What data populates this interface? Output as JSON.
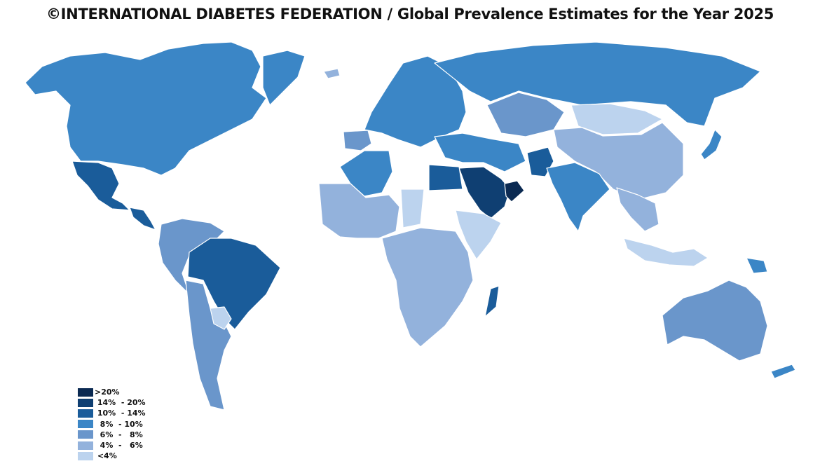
{
  "title": "©INTERNATIONAL DIABETES FEDERATION / Global Prevalence Estimates for the Year 2025",
  "legend": [
    {
      "label": ">20%",
      "color": "#0b2a52"
    },
    {
      "label": " 14%  - 20%",
      "color": "#0f3f72"
    },
    {
      "label": " 10%  - 14%",
      "color": "#1a5c9a"
    },
    {
      "label": "  8%  - 10%",
      "color": "#3b86c6"
    },
    {
      "label": "  6%  -   8%",
      "color": "#6a96cb"
    },
    {
      "label": "  4%  -   6%",
      "color": "#93b2dc"
    },
    {
      "label": " <4%",
      "color": "#bcd3ee"
    }
  ],
  "regions": [
    {
      "name": "North America",
      "color": "#3b86c6"
    },
    {
      "name": "Greenland",
      "color": "#3b86c6"
    },
    {
      "name": "Mexico",
      "color": "#1a5c9a"
    },
    {
      "name": "Central America",
      "color": "#1a5c9a"
    },
    {
      "name": "Brazil",
      "color": "#1a5c9a"
    },
    {
      "name": "Northern South America",
      "color": "#6a96cb"
    },
    {
      "name": "Southern South America",
      "color": "#6a96cb"
    },
    {
      "name": "Paraguay",
      "color": "#bcd3ee"
    },
    {
      "name": "Western Europe",
      "color": "#3b86c6"
    },
    {
      "name": "Iberia",
      "color": "#6a96cb"
    },
    {
      "name": "Iceland",
      "color": "#93b2dc"
    },
    {
      "name": "Russia",
      "color": "#3b86c6"
    },
    {
      "name": "Kazakhstan",
      "color": "#6a96cb"
    },
    {
      "name": "Mongolia",
      "color": "#bcd3ee"
    },
    {
      "name": "China",
      "color": "#93b2dc"
    },
    {
      "name": "Japan",
      "color": "#3b86c6"
    },
    {
      "name": "Middle East",
      "color": "#3b86c6"
    },
    {
      "name": "Saudi Arabia",
      "color": "#0f3f72"
    },
    {
      "name": "Oman",
      "color": "#0b2a52"
    },
    {
      "name": "Pakistan",
      "color": "#1a5c9a"
    },
    {
      "name": "India",
      "color": "#3b86c6"
    },
    {
      "name": "Southeast Asia",
      "color": "#93b2dc"
    },
    {
      "name": "Indonesia",
      "color": "#bcd3ee"
    },
    {
      "name": "Papua New Guinea",
      "color": "#3b86c6"
    },
    {
      "name": "Australia",
      "color": "#6a96cb"
    },
    {
      "name": "New Zealand",
      "color": "#3b86c6"
    },
    {
      "name": "Algeria",
      "color": "#3b86c6"
    },
    {
      "name": "Egypt",
      "color": "#1a5c9a"
    },
    {
      "name": "West Africa",
      "color": "#93b2dc"
    },
    {
      "name": "Chad",
      "color": "#bcd3ee"
    },
    {
      "name": "Horn of Africa",
      "color": "#bcd3ee"
    },
    {
      "name": "Central and Southern Africa",
      "color": "#93b2dc"
    },
    {
      "name": "Madagascar",
      "color": "#1a5c9a"
    }
  ]
}
